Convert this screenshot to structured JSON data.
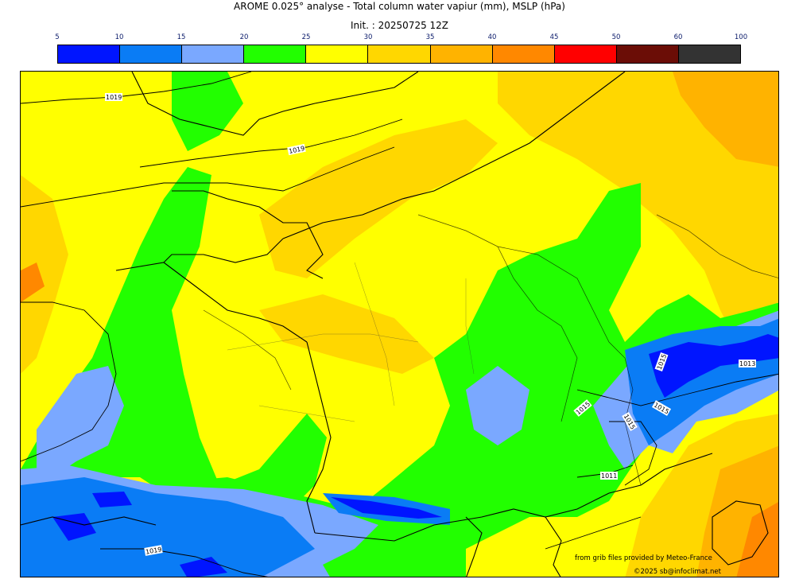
{
  "title": "AROME 0.025° analyse - Total column water vapiur (mm), MSLP (hPa)",
  "subtitle": "Init. : 20250725 12Z",
  "colorbar": {
    "ticks": [
      "5",
      "10",
      "15",
      "20",
      "25",
      "30",
      "35",
      "40",
      "45",
      "50",
      "60",
      "100"
    ],
    "colors": [
      "#0015ff",
      "#0a7cf5",
      "#7aa8ff",
      "#22ff00",
      "#ffff00",
      "#ffd700",
      "#ffb300",
      "#ff8800",
      "#ff0000",
      "#6b0d06",
      "#333333"
    ]
  },
  "isobar_labels": [
    "1019",
    "1019",
    "1019",
    "1015",
    "1015",
    "1015",
    "1015",
    "1013",
    "1011"
  ],
  "credits": {
    "source": "from grib files provided by Meteo-France",
    "copyright": "©2025 sb@infoclimat.net"
  }
}
